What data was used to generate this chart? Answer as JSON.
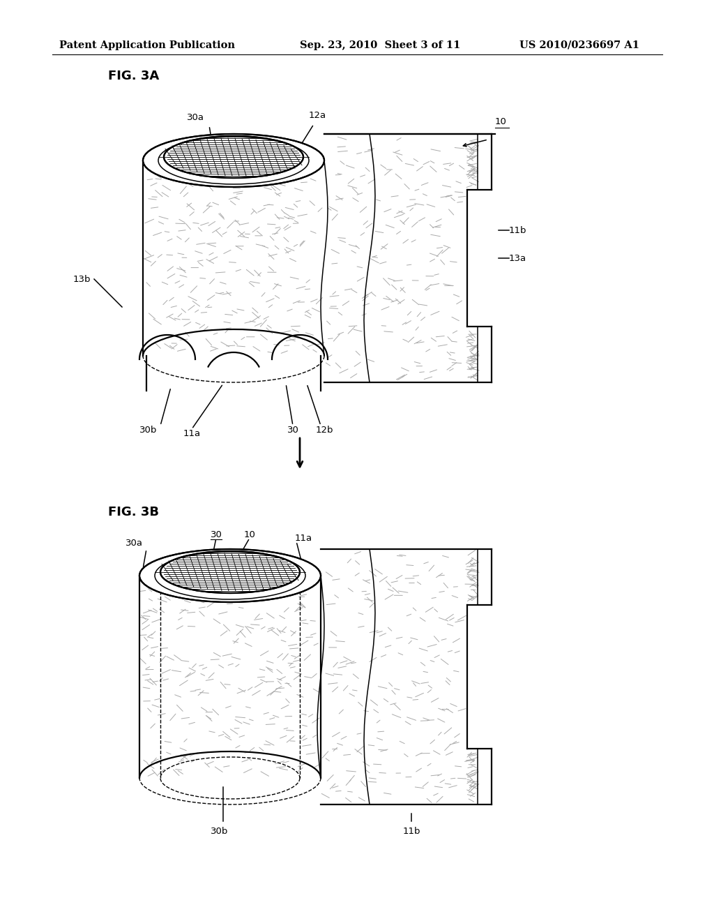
{
  "background_color": "#ffffff",
  "header_left": "Patent Application Publication",
  "header_mid": "Sep. 23, 2010  Sheet 3 of 11",
  "header_right": "US 2010/0236697 A1",
  "fig3a_label": "FIG. 3A",
  "fig3b_label": "FIG. 3B",
  "line_color": "#000000",
  "font_size_header": 10.5,
  "font_size_label": 9.5,
  "font_size_fig": 13
}
